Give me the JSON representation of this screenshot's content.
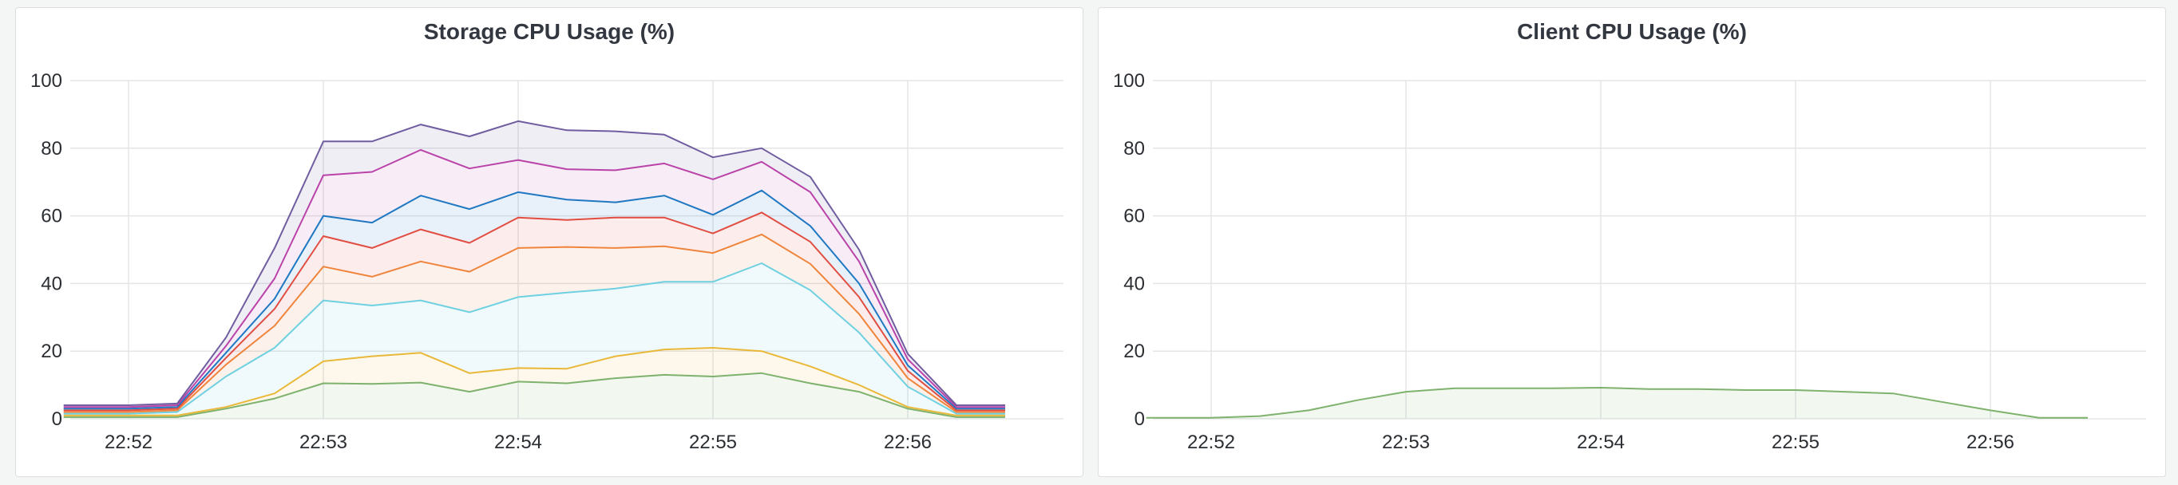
{
  "chart_data": [
    {
      "type": "area",
      "stacked": true,
      "title": "Storage CPU Usage (%)",
      "ylim": [
        0,
        100
      ],
      "yticks": [
        0,
        20,
        40,
        60,
        80,
        100
      ],
      "xlim": [
        "22:51:40",
        "22:56:30"
      ],
      "xticks": [
        "22:52",
        "22:53",
        "22:54",
        "22:55",
        "22:56"
      ],
      "grid": true,
      "legend": "none",
      "x": [
        "22:51:40",
        "22:52:00",
        "22:52:15",
        "22:52:30",
        "22:52:45",
        "22:53:00",
        "22:53:15",
        "22:53:30",
        "22:53:45",
        "22:54:00",
        "22:54:15",
        "22:54:30",
        "22:54:45",
        "22:55:00",
        "22:55:15",
        "22:55:30",
        "22:55:45",
        "22:56:00",
        "22:56:15",
        "22:56:30"
      ],
      "series": [
        {
          "color": "#7eb26d",
          "values": [
            0.5,
            0.5,
            0.5,
            3,
            6,
            10.5,
            10.3,
            10.7,
            8,
            11,
            10.5,
            12,
            13,
            12.5,
            13.5,
            10.5,
            8,
            3,
            0.5,
            0.5
          ]
        },
        {
          "color": "#eab839",
          "values": [
            0.5,
            0.5,
            0.5,
            0.5,
            1.5,
            6.5,
            8.2,
            8.8,
            5.5,
            4,
            4.3,
            6.5,
            7.5,
            8.5,
            6.5,
            5,
            2,
            0.5,
            0.5,
            0.5
          ]
        },
        {
          "color": "#6ed0e0",
          "values": [
            0.5,
            0.5,
            1,
            9,
            13.5,
            18,
            15,
            15.5,
            18,
            21,
            22.5,
            20,
            20,
            19.5,
            26,
            22.5,
            15.5,
            6,
            0.5,
            0.5
          ]
        },
        {
          "color": "#ef843c",
          "values": [
            0.5,
            0.5,
            0.5,
            3.5,
            6.5,
            10,
            8.5,
            11.5,
            12,
            14.5,
            13.5,
            12,
            10.5,
            8.5,
            8.5,
            7.8,
            5.5,
            2.5,
            0.5,
            0.5
          ]
        },
        {
          "color": "#e24d42",
          "values": [
            0.5,
            0.5,
            0.5,
            2,
            5,
            9,
            8.5,
            9.5,
            8.5,
            9,
            8,
            9,
            8.5,
            5.8,
            6.5,
            6.5,
            5,
            2.2,
            0.5,
            0.5
          ]
        },
        {
          "color": "#1f78c1",
          "values": [
            0.5,
            0.5,
            0.5,
            1.5,
            3,
            6,
            7.5,
            10,
            10,
            7.5,
            6,
            4.5,
            6.5,
            5.5,
            6.5,
            4.7,
            4,
            1.6,
            0.5,
            0.5
          ]
        },
        {
          "color": "#ba43a9",
          "values": [
            0.5,
            0.5,
            0.5,
            2,
            6,
            12,
            15,
            13.5,
            12,
            9.5,
            9,
            9.5,
            9.5,
            10.5,
            8.5,
            10,
            6.5,
            1.8,
            0.5,
            0.5
          ]
        },
        {
          "color": "#705da0",
          "values": [
            0.5,
            0.5,
            0.5,
            2.5,
            9,
            10,
            9,
            7.5,
            9.5,
            11.5,
            11.5,
            11.5,
            8.5,
            6.5,
            4,
            4.5,
            3.5,
            1.6,
            0.5,
            0.5
          ]
        }
      ]
    },
    {
      "type": "area",
      "stacked": false,
      "title": "Client CPU Usage (%)",
      "ylim": [
        0,
        100
      ],
      "yticks": [
        0,
        20,
        40,
        60,
        80,
        100
      ],
      "xlim": [
        "22:51:40",
        "22:56:30"
      ],
      "xticks": [
        "22:52",
        "22:53",
        "22:54",
        "22:55",
        "22:56"
      ],
      "grid": true,
      "legend": "none",
      "x": [
        "22:51:40",
        "22:52:00",
        "22:52:15",
        "22:52:30",
        "22:52:45",
        "22:53:00",
        "22:53:15",
        "22:53:30",
        "22:53:45",
        "22:54:00",
        "22:54:15",
        "22:54:30",
        "22:54:45",
        "22:55:00",
        "22:55:15",
        "22:55:30",
        "22:55:45",
        "22:56:00",
        "22:56:15",
        "22:56:30"
      ],
      "series": [
        {
          "color": "#7eb26d",
          "values": [
            0.3,
            0.3,
            0.8,
            2.5,
            5.5,
            8,
            9,
            9,
            9,
            9.2,
            8.8,
            8.8,
            8.5,
            8.5,
            8,
            7.5,
            5,
            2.5,
            0.3,
            0.3
          ]
        }
      ]
    }
  ]
}
